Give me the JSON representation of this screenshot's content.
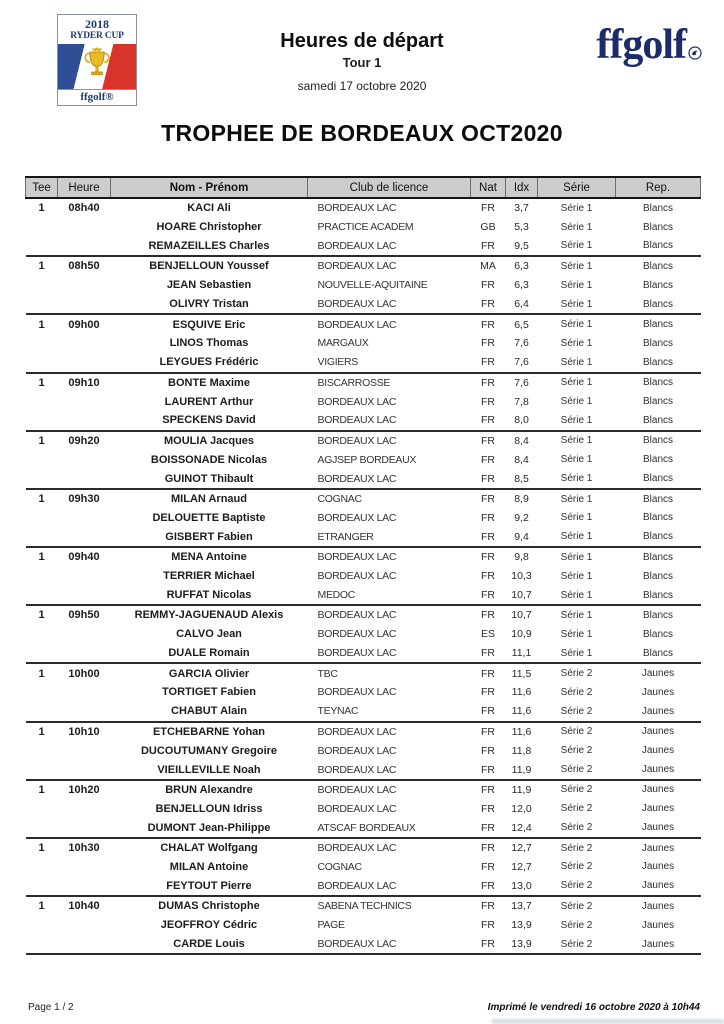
{
  "colors": {
    "navy": "#1c2c6b",
    "flag_blue": "#2e4f96",
    "flag_red": "#d9342b",
    "trophy_gold": "#dfaf1c",
    "table_header_bg": "#cdcdcd"
  },
  "header": {
    "logo": {
      "year": "2018",
      "event": "RYDER CUP",
      "brand": "ffgolf®"
    },
    "title": "Heures de départ",
    "subtitle": "Tour 1",
    "date": "samedi 17 octobre 2020",
    "brand_logo": "ffgolf"
  },
  "competition_title": "TROPHEE DE BORDEAUX OCT2020",
  "table": {
    "columns": [
      "Tee",
      "Heure",
      "Nom - Prénom",
      "Club de licence",
      "Nat",
      "Idx",
      "Série",
      "Rep."
    ],
    "groups": [
      {
        "tee": "1",
        "time": "08h40",
        "players": [
          {
            "name": "KACI Ali",
            "club": "BORDEAUX LAC",
            "nat": "FR",
            "idx": "3,7",
            "serie": "Série 1",
            "rep": "Blancs"
          },
          {
            "name": "HOARE Christopher",
            "club": "PRACTICE ACADEM",
            "nat": "GB",
            "idx": "5,3",
            "serie": "Série 1",
            "rep": "Blancs"
          },
          {
            "name": "REMAZEILLES Charles",
            "club": "BORDEAUX LAC",
            "nat": "FR",
            "idx": "9,5",
            "serie": "Série 1",
            "rep": "Blancs"
          }
        ]
      },
      {
        "tee": "1",
        "time": "08h50",
        "players": [
          {
            "name": "BENJELLOUN Youssef",
            "club": "BORDEAUX LAC",
            "nat": "MA",
            "idx": "6,3",
            "serie": "Série 1",
            "rep": "Blancs"
          },
          {
            "name": "JEAN Sebastien",
            "club": "NOUVELLE-AQUITAINE",
            "nat": "FR",
            "idx": "6,3",
            "serie": "Série 1",
            "rep": "Blancs"
          },
          {
            "name": "OLIVRY Tristan",
            "club": "BORDEAUX LAC",
            "nat": "FR",
            "idx": "6,4",
            "serie": "Série 1",
            "rep": "Blancs"
          }
        ]
      },
      {
        "tee": "1",
        "time": "09h00",
        "players": [
          {
            "name": "ESQUIVE Eric",
            "club": "BORDEAUX LAC",
            "nat": "FR",
            "idx": "6,5",
            "serie": "Série 1",
            "rep": "Blancs"
          },
          {
            "name": "LINOS Thomas",
            "club": "MARGAUX",
            "nat": "FR",
            "idx": "7,6",
            "serie": "Série 1",
            "rep": "Blancs"
          },
          {
            "name": "LEYGUES Frédéric",
            "club": "VIGIERS",
            "nat": "FR",
            "idx": "7,6",
            "serie": "Série 1",
            "rep": "Blancs"
          }
        ]
      },
      {
        "tee": "1",
        "time": "09h10",
        "players": [
          {
            "name": "BONTE Maxime",
            "club": "BISCARROSSE",
            "nat": "FR",
            "idx": "7,6",
            "serie": "Série 1",
            "rep": "Blancs"
          },
          {
            "name": "LAURENT Arthur",
            "club": "BORDEAUX LAC",
            "nat": "FR",
            "idx": "7,8",
            "serie": "Série 1",
            "rep": "Blancs"
          },
          {
            "name": "SPECKENS David",
            "club": "BORDEAUX LAC",
            "nat": "FR",
            "idx": "8,0",
            "serie": "Série 1",
            "rep": "Blancs"
          }
        ]
      },
      {
        "tee": "1",
        "time": "09h20",
        "players": [
          {
            "name": "MOULIA Jacques",
            "club": "BORDEAUX LAC",
            "nat": "FR",
            "idx": "8,4",
            "serie": "Série 1",
            "rep": "Blancs"
          },
          {
            "name": "BOISSONADE Nicolas",
            "club": "AGJSEP BORDEAUX",
            "nat": "FR",
            "idx": "8,4",
            "serie": "Série 1",
            "rep": "Blancs"
          },
          {
            "name": "GUINOT Thibault",
            "club": "BORDEAUX LAC",
            "nat": "FR",
            "idx": "8,5",
            "serie": "Série 1",
            "rep": "Blancs"
          }
        ]
      },
      {
        "tee": "1",
        "time": "09h30",
        "players": [
          {
            "name": "MILAN Arnaud",
            "club": "COGNAC",
            "nat": "FR",
            "idx": "8,9",
            "serie": "Série 1",
            "rep": "Blancs"
          },
          {
            "name": "DELOUETTE Baptiste",
            "club": "BORDEAUX LAC",
            "nat": "FR",
            "idx": "9,2",
            "serie": "Série 1",
            "rep": "Blancs"
          },
          {
            "name": "GISBERT Fabien",
            "club": "ETRANGER",
            "nat": "FR",
            "idx": "9,4",
            "serie": "Série 1",
            "rep": "Blancs"
          }
        ]
      },
      {
        "tee": "1",
        "time": "09h40",
        "players": [
          {
            "name": "MENA Antoine",
            "club": "BORDEAUX LAC",
            "nat": "FR",
            "idx": "9,8",
            "serie": "Série 1",
            "rep": "Blancs"
          },
          {
            "name": "TERRIER Michael",
            "club": "BORDEAUX LAC",
            "nat": "FR",
            "idx": "10,3",
            "serie": "Série 1",
            "rep": "Blancs"
          },
          {
            "name": "RUFFAT Nicolas",
            "club": "MEDOC",
            "nat": "FR",
            "idx": "10,7",
            "serie": "Série 1",
            "rep": "Blancs"
          }
        ]
      },
      {
        "tee": "1",
        "time": "09h50",
        "players": [
          {
            "name": "REMMY-JAGUENAUD Alexis",
            "club": "BORDEAUX LAC",
            "nat": "FR",
            "idx": "10,7",
            "serie": "Série 1",
            "rep": "Blancs"
          },
          {
            "name": "CALVO Jean",
            "club": "BORDEAUX LAC",
            "nat": "ES",
            "idx": "10,9",
            "serie": "Série 1",
            "rep": "Blancs"
          },
          {
            "name": "DUALE Romain",
            "club": "BORDEAUX LAC",
            "nat": "FR",
            "idx": "11,1",
            "serie": "Série 1",
            "rep": "Blancs"
          }
        ]
      },
      {
        "tee": "1",
        "time": "10h00",
        "players": [
          {
            "name": "GARCIA Olivier",
            "club": "TBC",
            "nat": "FR",
            "idx": "11,5",
            "serie": "Série 2",
            "rep": "Jaunes"
          },
          {
            "name": "TORTIGET Fabien",
            "club": "BORDEAUX LAC",
            "nat": "FR",
            "idx": "11,6",
            "serie": "Série 2",
            "rep": "Jaunes"
          },
          {
            "name": "CHABUT Alain",
            "club": "TEYNAC",
            "nat": "FR",
            "idx": "11,6",
            "serie": "Série 2",
            "rep": "Jaunes"
          }
        ]
      },
      {
        "tee": "1",
        "time": "10h10",
        "players": [
          {
            "name": "ETCHEBARNE Yohan",
            "club": "BORDEAUX LAC",
            "nat": "FR",
            "idx": "11,6",
            "serie": "Série 2",
            "rep": "Jaunes"
          },
          {
            "name": "DUCOUTUMANY Gregoire",
            "club": "BORDEAUX LAC",
            "nat": "FR",
            "idx": "11,8",
            "serie": "Série 2",
            "rep": "Jaunes"
          },
          {
            "name": "VIEILLEVILLE Noah",
            "club": "BORDEAUX LAC",
            "nat": "FR",
            "idx": "11,9",
            "serie": "Série 2",
            "rep": "Jaunes"
          }
        ]
      },
      {
        "tee": "1",
        "time": "10h20",
        "players": [
          {
            "name": "BRUN Alexandre",
            "club": "BORDEAUX LAC",
            "nat": "FR",
            "idx": "11,9",
            "serie": "Série 2",
            "rep": "Jaunes"
          },
          {
            "name": "BENJELLOUN Idriss",
            "club": "BORDEAUX LAC",
            "nat": "FR",
            "idx": "12,0",
            "serie": "Série 2",
            "rep": "Jaunes"
          },
          {
            "name": "DUMONT Jean-Philippe",
            "club": "ATSCAF BORDEAUX",
            "nat": "FR",
            "idx": "12,4",
            "serie": "Série 2",
            "rep": "Jaunes"
          }
        ]
      },
      {
        "tee": "1",
        "time": "10h30",
        "players": [
          {
            "name": "CHALAT Wolfgang",
            "club": "BORDEAUX LAC",
            "nat": "FR",
            "idx": "12,7",
            "serie": "Série 2",
            "rep": "Jaunes"
          },
          {
            "name": "MILAN Antoine",
            "club": "COGNAC",
            "nat": "FR",
            "idx": "12,7",
            "serie": "Série 2",
            "rep": "Jaunes"
          },
          {
            "name": "FEYTOUT Pierre",
            "club": "BORDEAUX LAC",
            "nat": "FR",
            "idx": "13,0",
            "serie": "Série 2",
            "rep": "Jaunes"
          }
        ]
      },
      {
        "tee": "1",
        "time": "10h40",
        "players": [
          {
            "name": "DUMAS Christophe",
            "club": "SABENA TECHNICS",
            "nat": "FR",
            "idx": "13,7",
            "serie": "Série 2",
            "rep": "Jaunes"
          },
          {
            "name": "JEOFFROY Cédric",
            "club": "PAGE",
            "nat": "FR",
            "idx": "13,9",
            "serie": "Série 2",
            "rep": "Jaunes"
          },
          {
            "name": "CARDE Louis",
            "club": "BORDEAUX LAC",
            "nat": "FR",
            "idx": "13,9",
            "serie": "Série 2",
            "rep": "Jaunes"
          }
        ]
      }
    ]
  },
  "footer": {
    "page": "Page 1 / 2",
    "printed": "Imprimé le vendredi 16 octobre 2020 à 10h44"
  }
}
